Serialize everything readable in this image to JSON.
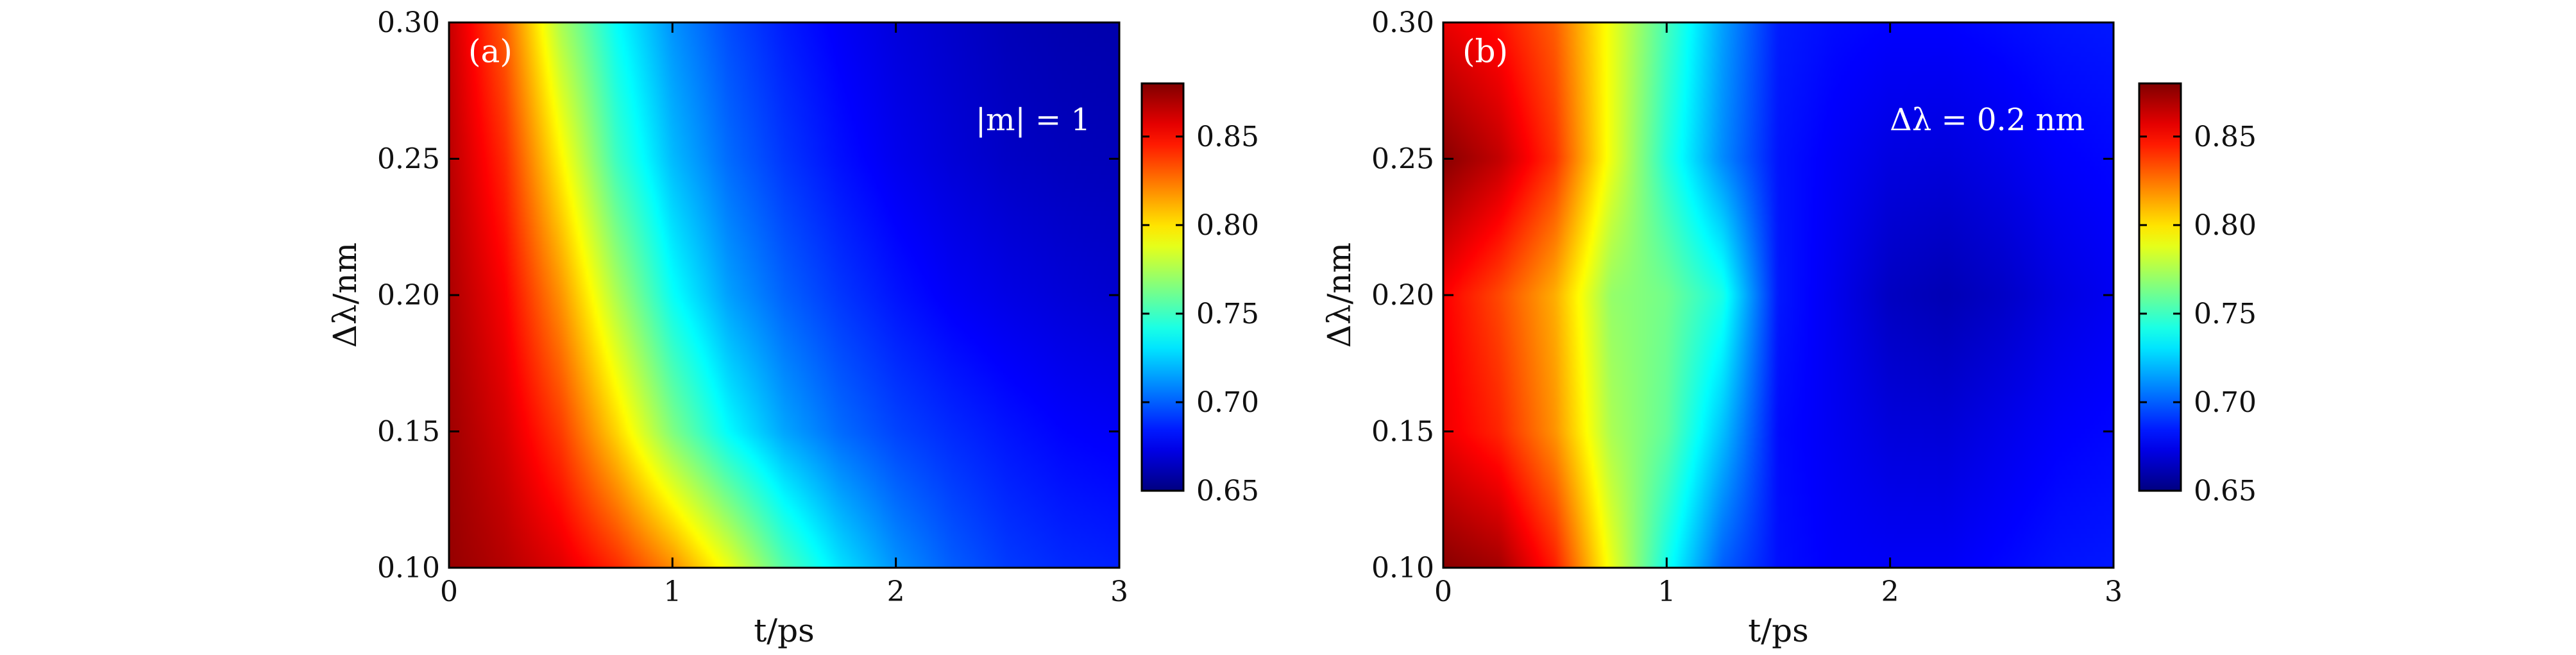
{
  "chart_data": [
    {
      "type": "heatmap",
      "panel_label": "(a)",
      "annotation": "|m| = 1",
      "xlabel": "t/ps",
      "ylabel": "Δλ/nm",
      "xlim": [
        0,
        3
      ],
      "ylim": [
        0.1,
        0.3
      ],
      "x_ticks": [
        "0",
        "1",
        "2",
        "3"
      ],
      "y_ticks": [
        "0.10",
        "0.15",
        "0.20",
        "0.25",
        "0.30"
      ],
      "colorbar": {
        "range": [
          0.65,
          0.88
        ],
        "ticks": [
          "0.65",
          "0.70",
          "0.75",
          "0.80",
          "0.85"
        ],
        "colormap": "jet"
      },
      "x": [
        0,
        0.25,
        0.5,
        0.75,
        1.0,
        1.25,
        1.5,
        1.75,
        2.0,
        2.25,
        2.5,
        2.75,
        3.0
      ],
      "y": [
        0.1,
        0.15,
        0.2,
        0.25,
        0.3
      ],
      "z": [
        [
          0.875,
          0.868,
          0.858,
          0.842,
          0.82,
          0.79,
          0.755,
          0.73,
          0.712,
          0.7,
          0.692,
          0.688,
          0.686
        ],
        [
          0.873,
          0.86,
          0.838,
          0.803,
          0.765,
          0.736,
          0.716,
          0.703,
          0.694,
          0.688,
          0.683,
          0.679,
          0.677
        ],
        [
          0.87,
          0.852,
          0.818,
          0.775,
          0.738,
          0.715,
          0.701,
          0.691,
          0.683,
          0.677,
          0.673,
          0.67,
          0.668
        ],
        [
          0.867,
          0.842,
          0.796,
          0.75,
          0.721,
          0.703,
          0.691,
          0.682,
          0.675,
          0.67,
          0.666,
          0.664,
          0.663
        ],
        [
          0.864,
          0.83,
          0.775,
          0.737,
          0.712,
          0.696,
          0.685,
          0.677,
          0.671,
          0.667,
          0.663,
          0.661,
          0.66
        ]
      ]
    },
    {
      "type": "heatmap",
      "panel_label": "(b)",
      "annotation": "Δλ = 0.2 nm",
      "xlabel": "t/ps",
      "ylabel": "Δλ/nm",
      "xlim": [
        0,
        3
      ],
      "ylim": [
        0.1,
        0.3
      ],
      "x_ticks": [
        "0",
        "1",
        "2",
        "3"
      ],
      "y_ticks": [
        "0.10",
        "0.15",
        "0.20",
        "0.25",
        "0.30"
      ],
      "colorbar": {
        "range": [
          0.65,
          0.88
        ],
        "ticks": [
          "0.65",
          "0.70",
          "0.75",
          "0.80",
          "0.85"
        ],
        "colormap": "jet"
      },
      "x": [
        0,
        0.25,
        0.5,
        0.75,
        1.0,
        1.25,
        1.5,
        1.75,
        2.0,
        2.25,
        2.5,
        2.75,
        3.0
      ],
      "y": [
        0.1,
        0.15,
        0.2,
        0.25,
        0.3
      ],
      "z": [
        [
          0.878,
          0.872,
          0.845,
          0.79,
          0.74,
          0.7,
          0.682,
          0.678,
          0.677,
          0.677,
          0.68,
          0.683,
          0.684
        ],
        [
          0.855,
          0.843,
          0.818,
          0.775,
          0.758,
          0.722,
          0.681,
          0.676,
          0.671,
          0.67,
          0.674,
          0.678,
          0.68
        ],
        [
          0.852,
          0.835,
          0.812,
          0.77,
          0.762,
          0.742,
          0.684,
          0.675,
          0.665,
          0.662,
          0.666,
          0.672,
          0.676
        ],
        [
          0.878,
          0.865,
          0.84,
          0.79,
          0.745,
          0.71,
          0.683,
          0.677,
          0.672,
          0.671,
          0.674,
          0.678,
          0.68
        ],
        [
          0.856,
          0.848,
          0.83,
          0.79,
          0.752,
          0.715,
          0.685,
          0.681,
          0.679,
          0.679,
          0.681,
          0.683,
          0.684
        ]
      ]
    }
  ]
}
